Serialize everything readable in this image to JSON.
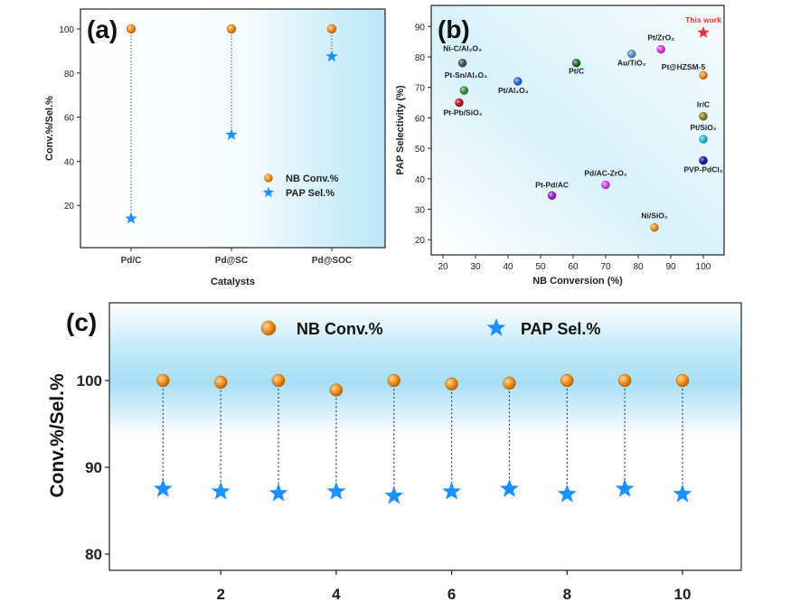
{
  "chart_data": [
    {
      "panel": "(a)",
      "type": "scatter",
      "xlabel": "Catalysts",
      "ylabel": "Conv.%/Sel.%",
      "categories": [
        "Pd/C",
        "Pd@SC",
        "Pd@SOC"
      ],
      "yticks": [
        20,
        40,
        60,
        80,
        100
      ],
      "series": [
        {
          "name": "NB Conv.%",
          "marker": "circle",
          "color": "#f7931e",
          "values": [
            100,
            100,
            100
          ]
        },
        {
          "name": "PAP Sel.%",
          "marker": "star",
          "color": "#1e90ff",
          "values": [
            14,
            52,
            87.5
          ]
        }
      ],
      "legend_position": "center-right"
    },
    {
      "panel": "(b)",
      "type": "scatter",
      "xlabel": "NB Conversion (%)",
      "ylabel": "PAP Selectivity (%)",
      "xticks": [
        20,
        30,
        40,
        50,
        60,
        70,
        80,
        90,
        100
      ],
      "yticks": [
        20,
        30,
        40,
        50,
        60,
        70,
        80,
        90
      ],
      "points": [
        {
          "label": "This work",
          "x": 100,
          "y": 88,
          "color": "#ff2a2a",
          "marker": "star"
        },
        {
          "label": "Pt/ZrO₂",
          "x": 87,
          "y": 82.5,
          "color": "#e040fb",
          "marker": "circle"
        },
        {
          "label": "Au/TiO₂",
          "x": 78,
          "y": 81,
          "color": "#5b9bd5",
          "marker": "circle"
        },
        {
          "label": "Pt@HZSM-5",
          "x": 100,
          "y": 74,
          "color": "#f7931e",
          "marker": "circle"
        },
        {
          "label": "Ni-C/Al₂O₃",
          "x": 26,
          "y": 78,
          "color": "#555555",
          "marker": "circle"
        },
        {
          "label": "Pt-Sn/Al₂O₃",
          "x": 26.5,
          "y": 69,
          "color": "#2ca02c",
          "marker": "circle"
        },
        {
          "label": "Pt-Pb/SiO₂",
          "x": 25,
          "y": 65,
          "color": "#c0182a",
          "marker": "circle"
        },
        {
          "label": "Pt/Al₂O₃",
          "x": 43,
          "y": 72,
          "color": "#2f6fe0",
          "marker": "circle"
        },
        {
          "label": "Pt/C",
          "x": 61,
          "y": 78,
          "color": "#1f7a2e",
          "marker": "circle"
        },
        {
          "label": "Ir/C",
          "x": 100,
          "y": 60.5,
          "color": "#8a8a1a",
          "marker": "circle"
        },
        {
          "label": "Pt/SiO₂",
          "x": 100,
          "y": 53,
          "color": "#22c7d6",
          "marker": "circle"
        },
        {
          "label": "PVP-PdCl₂",
          "x": 100,
          "y": 46,
          "color": "#1a1aa0",
          "marker": "circle"
        },
        {
          "label": "Pd/AC-ZrO₂",
          "x": 70,
          "y": 38,
          "color": "#e040fb",
          "marker": "circle"
        },
        {
          "label": "Pt-Pd/AC",
          "x": 53.5,
          "y": 34.5,
          "color": "#9b30d0",
          "marker": "circle"
        },
        {
          "label": "Ni/SiO₂",
          "x": 85,
          "y": 24,
          "color": "#f7931e",
          "marker": "circle"
        }
      ]
    },
    {
      "panel": "(c)",
      "type": "scatter",
      "ylabel": "Conv.%/Sel.%",
      "x": [
        1,
        2,
        3,
        4,
        5,
        6,
        7,
        8,
        9,
        10
      ],
      "xticks": [
        2,
        4,
        6,
        8,
        10
      ],
      "yticks": [
        80,
        90,
        100
      ],
      "series": [
        {
          "name": "NB Conv.%",
          "marker": "circle",
          "color": "#f7931e",
          "values": [
            100,
            99.8,
            100,
            98.9,
            100,
            99.6,
            99.7,
            100,
            100,
            100
          ]
        },
        {
          "name": "PAP Sel.%",
          "marker": "star",
          "color": "#1e90ff",
          "values": [
            87.5,
            87.2,
            87.0,
            87.2,
            86.7,
            87.2,
            87.5,
            86.9,
            87.5,
            86.9
          ]
        }
      ],
      "legend_position": "top"
    }
  ]
}
